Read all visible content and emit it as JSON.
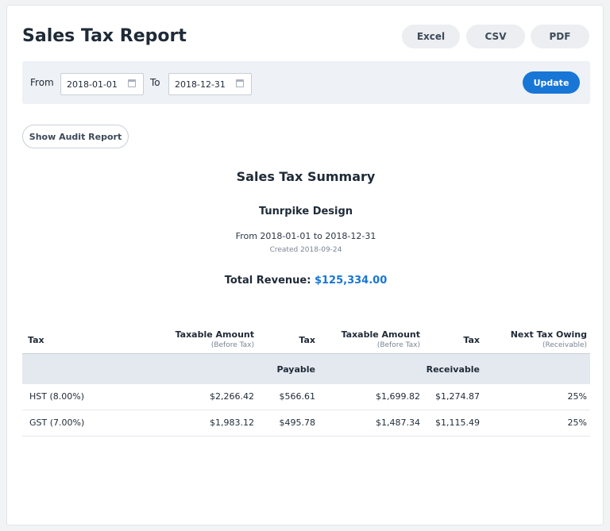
{
  "header": {
    "title": "Sales Tax Report",
    "export": {
      "excel": "Excel",
      "csv": "CSV",
      "pdf": "PDF"
    }
  },
  "filters": {
    "from_label": "From",
    "from_value": "2018-01-01",
    "to_label": "To",
    "to_value": "2018-12-31",
    "update_label": "Update"
  },
  "audit_button": "Show Audit Report",
  "summary": {
    "title": "Sales Tax Summary",
    "company": "Tunrpike Design",
    "range": "From 2018-01-01 to 2018-12-31",
    "created": "Created 2018-09-24",
    "revenue_label": "Total Revenue:",
    "revenue_value": "$125,334.00"
  },
  "table": {
    "headers": {
      "tax": "Tax",
      "taxable1": "Taxable Amount",
      "taxable1_sub": "(Before Tax)",
      "tax1": "Tax",
      "taxable2": "Taxable Amount",
      "taxable2_sub": "(Before Tax)",
      "tax2": "Tax",
      "owing": "Next Tax Owing",
      "owing_sub": "(Receivable)"
    },
    "groups": {
      "payable": "Payable",
      "receivable": "Receivable"
    },
    "rows": [
      {
        "tax": "HST (8.00%)",
        "taxable_payable": "$2,266.42",
        "tax_payable": "$566.61",
        "taxable_receivable": "$1,699.82",
        "tax_receivable": "$1,274.87",
        "owing": "25%"
      },
      {
        "tax": "GST (7.00%)",
        "taxable_payable": "$1,983.12",
        "tax_payable": "$495.78",
        "taxable_receivable": "$1,487.34",
        "tax_receivable": "$1,115.49",
        "owing": "25%"
      }
    ]
  },
  "colors": {
    "accent": "#1876d6",
    "filter_bg": "#eef1f5",
    "group_bg": "#e4e9ef"
  }
}
